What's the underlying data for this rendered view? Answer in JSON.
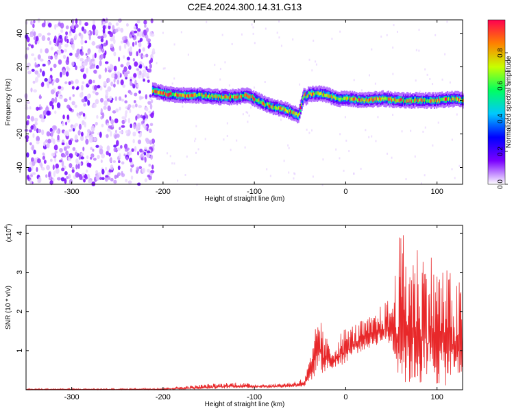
{
  "title": "C2E4.2024.300.14.31.G13",
  "chart_data": [
    {
      "type": "heatmap",
      "title": "C2E4.2024.300.14.31.G13",
      "xlabel": "Height of straight line (km)",
      "ylabel": "Frequency (Hz)",
      "xlim": [
        -350,
        128
      ],
      "ylim": [
        -50,
        48
      ],
      "xticks": [
        -300,
        -200,
        -100,
        0,
        100
      ],
      "yticks": [
        -40,
        -20,
        0,
        20,
        40
      ],
      "colorbar": {
        "label": "Normalized spectral amplitude",
        "range": [
          0,
          1
        ],
        "ticks": [
          "0.0",
          "0.2",
          "0.4",
          "0.6",
          "0.8"
        ],
        "colors": [
          "#ffffff",
          "#7a00ff",
          "#0000ff",
          "#00c8ff",
          "#00ff60",
          "#c8ff00",
          "#ff8000",
          "#ff0050"
        ]
      },
      "noise_region_x": [
        -350,
        -210
      ],
      "ridge": {
        "x": [
          -212,
          -200,
          -180,
          -160,
          -140,
          -120,
          -110,
          -100,
          -90,
          -80,
          -70,
          -60,
          -52,
          -46,
          -44,
          -40,
          -30,
          -20,
          -10,
          0,
          20,
          40,
          60,
          80,
          100,
          120,
          128
        ],
        "y": [
          6,
          4,
          3,
          3,
          2,
          2,
          3,
          1,
          -2,
          -4,
          -5,
          -7,
          -9,
          4,
          2,
          4,
          4,
          3,
          1,
          1,
          0,
          1,
          0,
          0,
          0,
          1,
          0
        ]
      }
    },
    {
      "type": "line",
      "xlabel": "Height of straight line (km)",
      "ylabel": "SNR (10 * v/v)",
      "yscale_label": "(x10",
      "yscale_exp": "4",
      "xlim": [
        -350,
        128
      ],
      "ylim": [
        0,
        4.2
      ],
      "xticks": [
        -300,
        -200,
        -100,
        0,
        100
      ],
      "yticks": [
        1,
        2,
        3,
        4
      ],
      "color": "#e8282a",
      "envelope": {
        "x": [
          -350,
          -250,
          -200,
          -150,
          -120,
          -100,
          -80,
          -60,
          -45,
          -35,
          -30,
          -25,
          -20,
          -15,
          -10,
          -5,
          0,
          10,
          20,
          30,
          40,
          50,
          55,
          60,
          65,
          70,
          80,
          90,
          100,
          110,
          120,
          128
        ],
        "low": [
          0,
          0,
          0,
          0.02,
          0.04,
          0.05,
          0.05,
          0.06,
          0.08,
          0.3,
          0.6,
          0.4,
          0.5,
          0.5,
          0.6,
          0.6,
          0.7,
          0.9,
          1.0,
          1.1,
          1.2,
          1.1,
          0.6,
          0.2,
          0.1,
          0.1,
          0.1,
          0.1,
          0.1,
          0.1,
          0.2,
          0.3
        ],
        "high": [
          0.03,
          0.03,
          0.05,
          0.15,
          0.2,
          0.15,
          0.15,
          0.2,
          0.3,
          1.2,
          2.2,
          1.5,
          1.3,
          1.1,
          1.3,
          1.5,
          1.6,
          1.7,
          1.8,
          1.9,
          2.2,
          2.4,
          3.2,
          4.2,
          3.9,
          3.8,
          3.8,
          3.7,
          3.3,
          3.2,
          2.8,
          2.8
        ]
      }
    }
  ]
}
